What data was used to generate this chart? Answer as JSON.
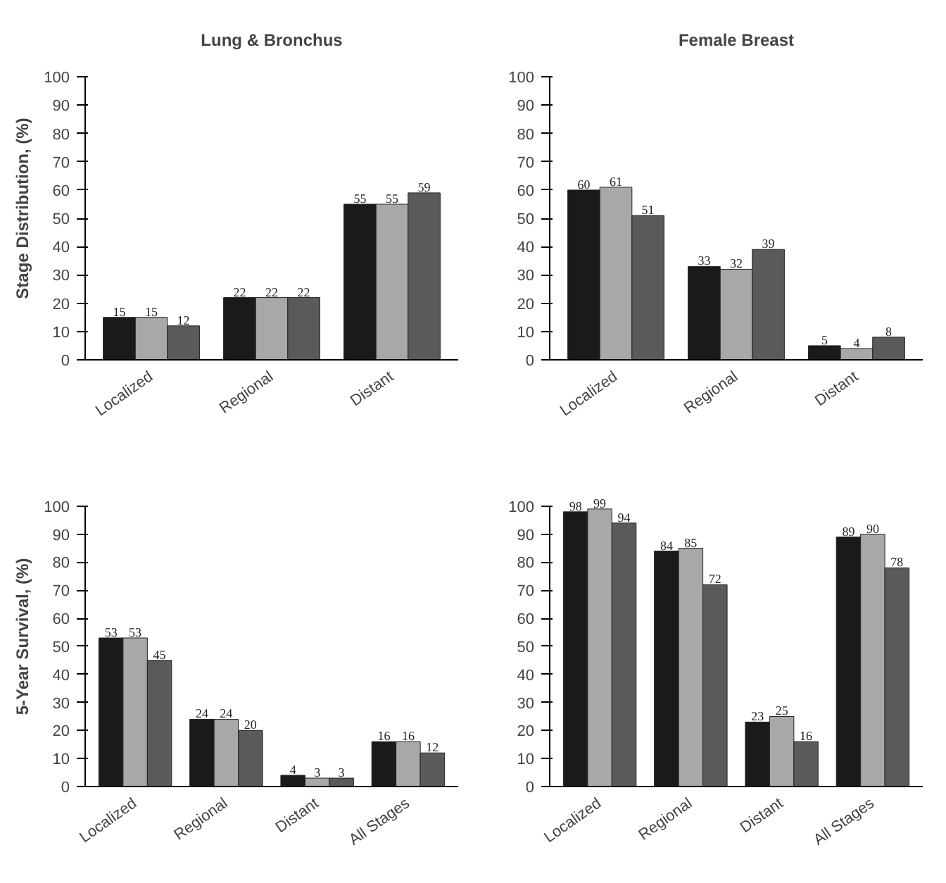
{
  "chart_data": [
    {
      "type": "bar",
      "title": "Lung & Bronchus",
      "ylabel": "Stage Distribution, (%)",
      "categories": [
        "Localized",
        "Regional",
        "Distant"
      ],
      "series": [
        {
          "color": "#1a1a1a",
          "values": [
            15,
            22,
            55
          ]
        },
        {
          "color": "#a8a8a8",
          "values": [
            15,
            22,
            55
          ]
        },
        {
          "color": "#5a5a5a",
          "values": [
            12,
            22,
            59
          ]
        }
      ],
      "ylim": [
        0,
        100
      ],
      "yticks": [
        0,
        10,
        20,
        30,
        40,
        50,
        60,
        70,
        80,
        90,
        100
      ],
      "data_labels": true,
      "grid": false
    },
    {
      "type": "bar",
      "title": "Female Breast",
      "categories": [
        "Localized",
        "Regional",
        "Distant"
      ],
      "series": [
        {
          "color": "#1a1a1a",
          "values": [
            60,
            33,
            5
          ]
        },
        {
          "color": "#a8a8a8",
          "values": [
            61,
            32,
            4
          ]
        },
        {
          "color": "#5a5a5a",
          "values": [
            51,
            39,
            8
          ]
        }
      ],
      "ylim": [
        0,
        100
      ],
      "yticks": [
        0,
        10,
        20,
        30,
        40,
        50,
        60,
        70,
        80,
        90,
        100
      ],
      "data_labels": true,
      "grid": false
    },
    {
      "type": "bar",
      "ylabel": "5-Year Survival, (%)",
      "categories": [
        "Localized",
        "Regional",
        "Distant",
        "All Stages"
      ],
      "series": [
        {
          "color": "#1a1a1a",
          "values": [
            53,
            24,
            4,
            16
          ]
        },
        {
          "color": "#a8a8a8",
          "values": [
            53,
            24,
            3,
            16
          ]
        },
        {
          "color": "#5a5a5a",
          "values": [
            45,
            20,
            3,
            12
          ]
        }
      ],
      "ylim": [
        0,
        100
      ],
      "yticks": [
        0,
        10,
        20,
        30,
        40,
        50,
        60,
        70,
        80,
        90,
        100
      ],
      "data_labels": true,
      "grid": false
    },
    {
      "type": "bar",
      "categories": [
        "Localized",
        "Regional",
        "Distant",
        "All Stages"
      ],
      "series": [
        {
          "color": "#1a1a1a",
          "values": [
            98,
            84,
            23,
            89
          ]
        },
        {
          "color": "#a8a8a8",
          "values": [
            99,
            85,
            25,
            90
          ]
        },
        {
          "color": "#5a5a5a",
          "values": [
            94,
            72,
            16,
            78
          ]
        }
      ],
      "ylim": [
        0,
        100
      ],
      "yticks": [
        0,
        10,
        20,
        30,
        40,
        50,
        60,
        70,
        80,
        90,
        100
      ],
      "data_labels": true,
      "grid": false
    }
  ]
}
